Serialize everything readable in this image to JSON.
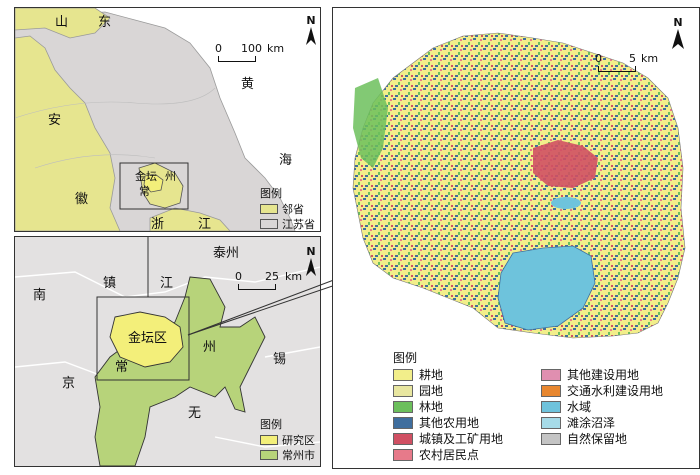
{
  "province_map": {
    "labels": {
      "shandong_1": "山",
      "shandong_2": "东",
      "yellow_sea": "黄",
      "sea": "海",
      "anhui_1": "安",
      "anhui_2": "徽",
      "zhejiang_1": "浙",
      "zhejiang_2": "江",
      "jintan_overlay": "金坛",
      "changzhou_1": "常",
      "changzhou_2": "州"
    },
    "scale": {
      "zero": "0",
      "value": "100",
      "unit": "km"
    },
    "north": "N",
    "legend": {
      "title": "图例",
      "items": [
        {
          "label": "邻省",
          "color": "#e6e58f"
        },
        {
          "label": "江苏省",
          "color": "#d9d6d6"
        }
      ]
    }
  },
  "region_map": {
    "labels": {
      "taizhou": "泰州",
      "zhen": "镇",
      "jiang": "江",
      "nan": "南",
      "jing": "京",
      "chang": "常",
      "zhou": "州",
      "wu": "无",
      "xi": "锡",
      "jintan": "金坛区"
    },
    "scale": {
      "zero": "0",
      "value": "25",
      "unit": "km"
    },
    "north": "N",
    "legend": {
      "title": "图例",
      "items": [
        {
          "label": "研究区",
          "color": "#f3ef7a"
        },
        {
          "label": "常州市",
          "color": "#b7d37a"
        }
      ]
    }
  },
  "landuse_map": {
    "north": "N",
    "scale": {
      "zero": "0",
      "value": "5",
      "unit": "km"
    },
    "legend": {
      "title": "图例",
      "items_left": [
        {
          "label": "耕地",
          "color": "#f2ee8a",
          "icon": "cropland"
        },
        {
          "label": "园地",
          "color": "#e8e6a0",
          "icon": "orchard"
        },
        {
          "label": "林地",
          "color": "#6cbf5c",
          "icon": "forest"
        },
        {
          "label": "其他农用地",
          "color": "#3f6e9e",
          "icon": "other-agri"
        },
        {
          "label": "城镇及工矿用地",
          "color": "#d05063",
          "icon": "urban"
        },
        {
          "label": "农村居民点",
          "color": "#e77a8a",
          "icon": "rural-settlement"
        }
      ],
      "items_right": [
        {
          "label": "其他建设用地",
          "color": "#e08fb0",
          "icon": "other-construction"
        },
        {
          "label": "交通水利建设用地",
          "color": "#e8872f",
          "icon": "transport-water"
        },
        {
          "label": "水域",
          "color": "#6ec3dc",
          "icon": "water"
        },
        {
          "label": "滩涂沼泽",
          "color": "#a6dbe8",
          "icon": "marsh"
        },
        {
          "label": "自然保留地",
          "color": "#c4c4c4",
          "icon": "reserve"
        }
      ]
    }
  }
}
